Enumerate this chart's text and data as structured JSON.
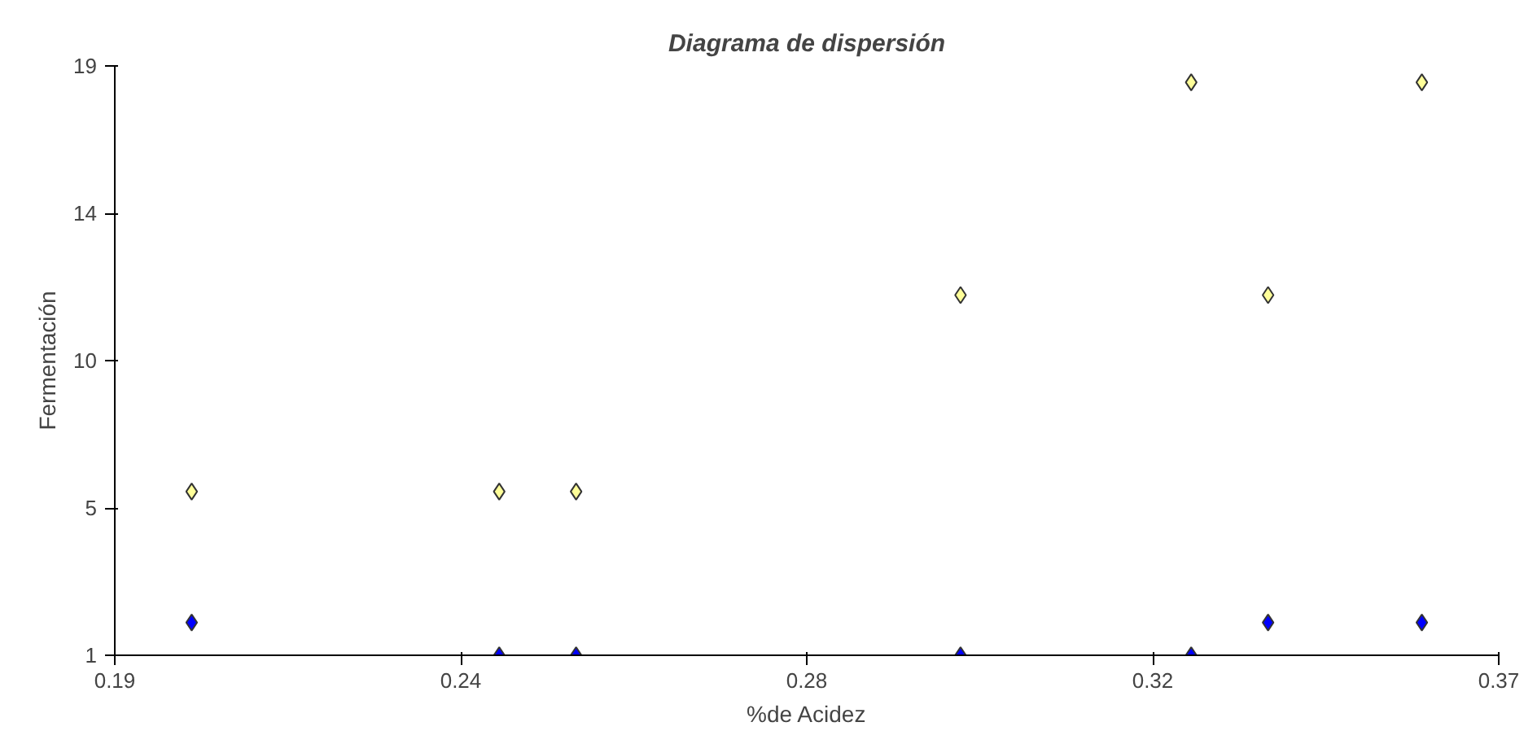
{
  "chart_data": {
    "type": "scatter",
    "title": "Diagrama de dispersión",
    "xlabel": "%de Acidez",
    "ylabel": "Fermentación",
    "marker": "diamond",
    "grid": false,
    "xlim": [
      0.19,
      0.37
    ],
    "xticks": [
      0.19,
      {
        "value": 0.235,
        "label": "0.24"
      },
      0.28,
      {
        "value": 0.325,
        "label": "0.32"
      },
      0.37
    ],
    "ylim": [
      1,
      19
    ],
    "yticks": [
      1,
      {
        "value": 5.5,
        "label": "5"
      },
      10,
      {
        "value": 14.5,
        "label": "14"
      },
      19
    ],
    "series": [
      {
        "color": "#ffff99",
        "x": [
          0.2,
          0.24,
          0.25,
          0.3,
          0.33,
          0.34,
          0.36
        ],
        "values": [
          6,
          6,
          6,
          12,
          18.5,
          12,
          18.5
        ]
      },
      {
        "color": "#0000ff",
        "x": [
          0.2,
          0.24,
          0.25,
          0.3,
          0.33,
          0.34,
          0.36
        ],
        "values": [
          2,
          1,
          1,
          1,
          1,
          2,
          2
        ]
      }
    ]
  }
}
